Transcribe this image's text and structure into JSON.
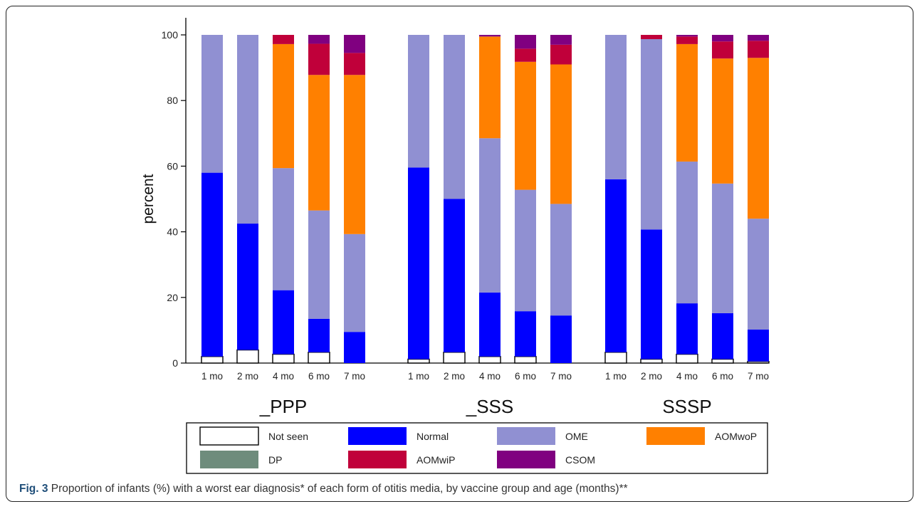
{
  "chart_data": {
    "type": "bar",
    "stacked": true,
    "ylabel": "percent",
    "ylim": [
      0,
      100
    ],
    "yticks": [
      0,
      20,
      40,
      60,
      80,
      100
    ],
    "grid": false,
    "legend_position": "bottom",
    "groups": [
      {
        "name": "_PPP",
        "categories": [
          "1 mo",
          "2 mo",
          "4 mo",
          "6 mo",
          "7 mo"
        ],
        "series": [
          {
            "name": "Not seen",
            "values": [
              2,
              4,
              2.7,
              3.3,
              0
            ]
          },
          {
            "name": "Normal",
            "values": [
              56,
              38.5,
              19.5,
              10.2,
              9.5
            ]
          },
          {
            "name": "OME",
            "values": [
              42,
              57.5,
              37.2,
              33,
              29.8
            ]
          },
          {
            "name": "AOMwoP",
            "values": [
              0,
              0,
              37.8,
              41.3,
              48.5
            ]
          },
          {
            "name": "DP",
            "values": [
              0,
              0,
              0,
              0,
              0
            ]
          },
          {
            "name": "AOMwiP",
            "values": [
              0,
              0,
              2.8,
              9.5,
              6.7
            ]
          },
          {
            "name": "CSOM",
            "values": [
              0,
              0,
              0,
              2.7,
              5.5
            ]
          }
        ]
      },
      {
        "name": "_SSS",
        "categories": [
          "1 mo",
          "2 mo",
          "4 mo",
          "6 mo",
          "7 mo"
        ],
        "series": [
          {
            "name": "Not seen",
            "values": [
              1.2,
              3.3,
              2,
              2,
              0
            ]
          },
          {
            "name": "Normal",
            "values": [
              58.4,
              46.7,
              19.5,
              13.8,
              14.5
            ]
          },
          {
            "name": "OME",
            "values": [
              40.4,
              50,
              47,
              37,
              34
            ]
          },
          {
            "name": "AOMwoP",
            "values": [
              0,
              0,
              31,
              39,
              42.5
            ]
          },
          {
            "name": "DP",
            "values": [
              0,
              0,
              0,
              0,
              0
            ]
          },
          {
            "name": "AOMwiP",
            "values": [
              0,
              0,
              0,
              4,
              6
            ]
          },
          {
            "name": "CSOM",
            "values": [
              0,
              0,
              0.5,
              4.2,
              3
            ]
          }
        ]
      },
      {
        "name": "SSSP",
        "categories": [
          "1 mo",
          "2 mo",
          "4 mo",
          "6 mo",
          "7 mo"
        ],
        "series": [
          {
            "name": "Not seen",
            "values": [
              3.3,
              1.2,
              2.7,
              1.2,
              0.5
            ]
          },
          {
            "name": "Normal",
            "values": [
              52.7,
              39.5,
              15.5,
              14,
              9.7
            ]
          },
          {
            "name": "OME",
            "values": [
              44,
              58,
              43.2,
              39.5,
              33.8
            ]
          },
          {
            "name": "AOMwoP",
            "values": [
              0,
              0,
              35.8,
              38.1,
              49
            ]
          },
          {
            "name": "DP",
            "values": [
              0,
              0,
              0,
              0,
              0
            ]
          },
          {
            "name": "AOMwiP",
            "values": [
              0,
              1.3,
              2.3,
              5.2,
              5.2
            ]
          },
          {
            "name": "CSOM",
            "values": [
              0,
              0,
              0.5,
              2,
              1.8
            ]
          }
        ]
      }
    ],
    "legend": [
      {
        "name": "Not seen",
        "color": "#ffffff"
      },
      {
        "name": "Normal",
        "color": "#0000ff"
      },
      {
        "name": "OME",
        "color": "#9090d2"
      },
      {
        "name": "AOMwoP",
        "color": "#ff8000"
      },
      {
        "name": "DP",
        "color": "#6e8c7c"
      },
      {
        "name": "AOMwiP",
        "color": "#c0003a"
      },
      {
        "name": "CSOM",
        "color": "#800080"
      }
    ]
  },
  "caption": {
    "lead": "Fig. 3",
    "text": " Proportion of infants (%) with a worst ear diagnosis* of each form of otitis media, by vaccine group and age (months)**"
  }
}
